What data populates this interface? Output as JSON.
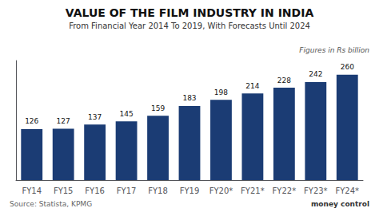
{
  "chart_data": {
    "type": "bar",
    "title": "VALUE OF THE FILM INDUSTRY IN INDIA",
    "subtitle": "From Financial Year 2014 To 2019, With Forecasts Until 2024",
    "annotations": [
      "Figures in Rs billion",
      "Source: Statista, KPMG",
      "money",
      "control"
    ],
    "categories": [
      "FY14",
      "FY15",
      "FY16",
      "FY17",
      "FY18",
      "FY19",
      "FY20*",
      "FY21*",
      "FY22*",
      "FY23*",
      "FY24*"
    ],
    "values": [
      126,
      127,
      137,
      145,
      159,
      183,
      198,
      214,
      228,
      242,
      260
    ],
    "color": "#1b3c74",
    "ylim": [
      0,
      295
    ],
    "grid": false,
    "data_labels": true,
    "tick_labels": "x"
  }
}
